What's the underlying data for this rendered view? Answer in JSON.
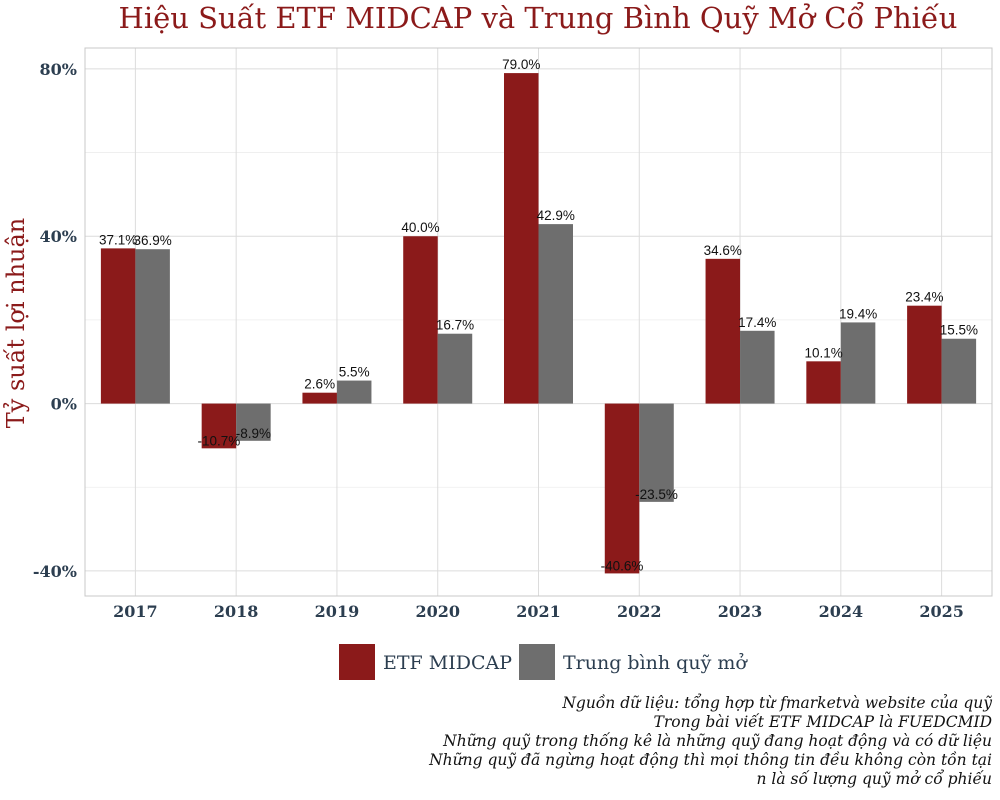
{
  "chart_data": {
    "type": "bar",
    "title": "Hiệu Suất ETF MIDCAP và Trung Bình Quỹ Mở Cổ Phiếu",
    "xlabel": "",
    "ylabel": "Tỷ suất lợi nhuận",
    "categories": [
      "2017",
      "2018",
      "2019",
      "2020",
      "2021",
      "2022",
      "2023",
      "2024",
      "2025"
    ],
    "series": [
      {
        "name": "ETF MIDCAP",
        "color": "#8b1a1a",
        "values": [
          37.1,
          -10.7,
          2.6,
          40.0,
          79.0,
          -40.6,
          34.6,
          10.1,
          23.4
        ],
        "labels": [
          "37.1%",
          "-10.7%",
          "2.6%",
          "40.0%",
          "79.0%",
          "-40.6%",
          "34.6%",
          "10.1%",
          "23.4%"
        ]
      },
      {
        "name": "Trung bình quỹ mở",
        "color": "#6e6e6e",
        "values": [
          36.9,
          -8.9,
          5.5,
          16.7,
          42.9,
          -23.5,
          17.4,
          19.4,
          15.5
        ],
        "labels": [
          "36.9%",
          "-8.9%",
          "5.5%",
          "16.7%",
          "42.9%",
          "-23.5%",
          "17.4%",
          "19.4%",
          "15.5%"
        ]
      }
    ],
    "ylim": [
      -46,
      85
    ],
    "yticks": [
      -40,
      0,
      40,
      80
    ],
    "ytick_labels": [
      "-40%",
      "0%",
      "40%",
      "80%"
    ],
    "grid": true,
    "legend": "bottom",
    "caption_lines": [
      "Nguồn dữ liệu: tổng hợp từ fmarketvà website của quỹ",
      "Trong bài viết ETF MIDCAP là FUEDCMID",
      "Những quỹ trong thống kê là những quỹ đang hoạt động và có dữ liệu",
      "Những quỹ đã ngừng hoạt động thì mọi thông tin đều không còn tồn tại",
      "n là số lượng quỹ mở cổ phiếu"
    ]
  }
}
